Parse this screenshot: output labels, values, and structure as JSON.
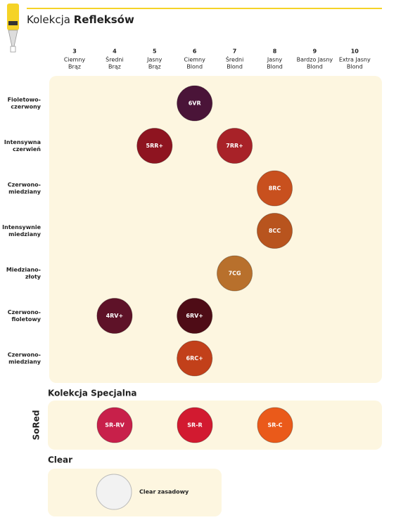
{
  "header": {
    "title_normal": "Kolekcja",
    "title_bold": "Refleksów"
  },
  "columns": [
    {
      "number": "3",
      "name": [
        "Ciemny",
        "Brąz"
      ]
    },
    {
      "number": "4",
      "name": [
        "Średni",
        "Brąz"
      ]
    },
    {
      "number": "5",
      "name": [
        "Jasny",
        "Brąz"
      ]
    },
    {
      "number": "6",
      "name": [
        "Ciemny",
        "Blond"
      ]
    },
    {
      "number": "7",
      "name": [
        "Średni",
        "Blond"
      ]
    },
    {
      "number": "8",
      "name": [
        "Jasny",
        "Blond"
      ]
    },
    {
      "number": "9",
      "name": [
        "Bardzo Jasny",
        "Blond"
      ]
    },
    {
      "number": "10",
      "name": [
        "Extra Jasny",
        "Blond"
      ]
    }
  ],
  "rows": [
    {
      "label": [
        "Fioletowo-",
        "czerwony"
      ],
      "cells": [
        null,
        null,
        null,
        {
          "label": "6VR",
          "color": "#4a1438"
        },
        null,
        null,
        null,
        null
      ]
    },
    {
      "label": [
        "Intensywna",
        "czerwień"
      ],
      "cells": [
        null,
        null,
        {
          "label": "5RR+",
          "color": "#8e1420"
        },
        null,
        {
          "label": "7RR+",
          "color": "#a82228"
        },
        null,
        null,
        null
      ]
    },
    {
      "label": [
        "Czerwono-",
        "miedziany"
      ],
      "cells": [
        null,
        null,
        null,
        null,
        null,
        {
          "label": "8RC",
          "color": "#c8501e"
        },
        null,
        null
      ]
    },
    {
      "label": [
        "Intensywnie",
        "miedziany"
      ],
      "cells": [
        null,
        null,
        null,
        null,
        null,
        {
          "label": "8CC",
          "color": "#b8541e"
        },
        null,
        null
      ]
    },
    {
      "label": [
        "Miedziano-",
        "złoty"
      ],
      "cells": [
        null,
        null,
        null,
        null,
        {
          "label": "7CG",
          "color": "#b8702c"
        },
        null,
        null,
        null
      ]
    },
    {
      "label": [
        "Czerwono-",
        "fioletowy"
      ],
      "cells": [
        null,
        {
          "label": "4RV+",
          "color": "#5e1228"
        },
        null,
        {
          "label": "6RV+",
          "color": "#4e0c16"
        },
        null,
        null,
        null,
        null
      ]
    },
    {
      "label": [
        "Czerwono-",
        "miedziany"
      ],
      "cells": [
        null,
        null,
        null,
        {
          "label": "6RC+",
          "color": "#c2401a"
        },
        null,
        null,
        null,
        null
      ]
    }
  ],
  "special": {
    "title": "Kolekcja Specjalna",
    "side_label": "SoRed",
    "swatches": [
      {
        "label": "SR-RV",
        "color": "#c8204a"
      },
      {
        "label": "SR-R",
        "color": "#d21a30"
      },
      {
        "label": "SR-C",
        "color": "#ea5a1a"
      }
    ]
  },
  "clear": {
    "title": "Clear",
    "swatch": {
      "label": "Clear zasadowy",
      "color": "#f2f2f2"
    }
  }
}
